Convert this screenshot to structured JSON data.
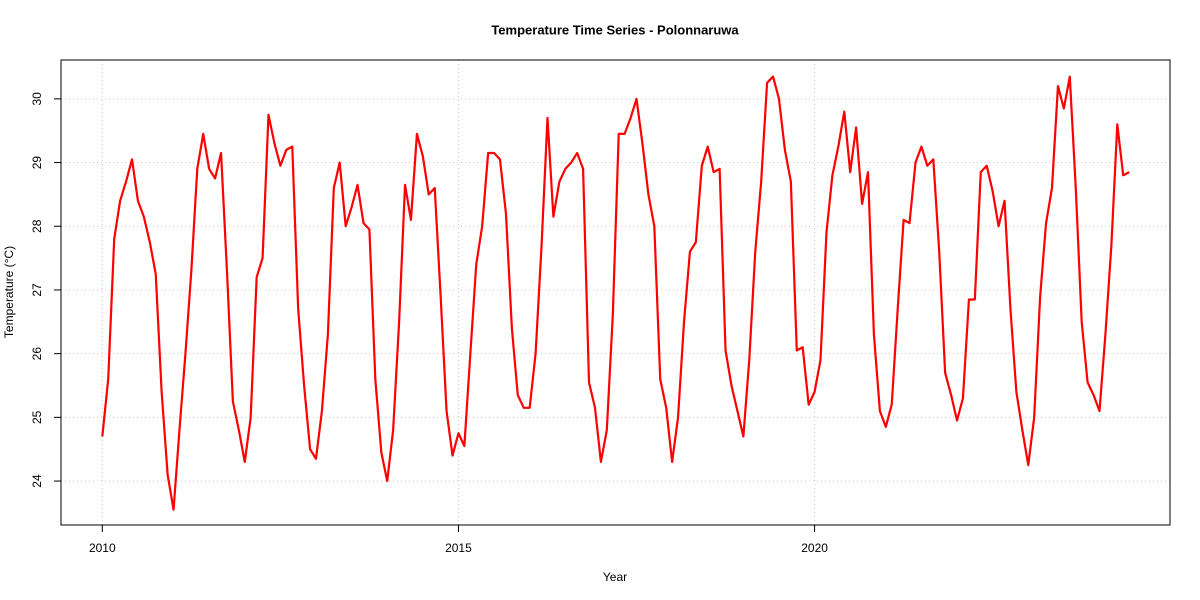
{
  "chart_data": {
    "type": "line",
    "title": "Temperature Time Series - Polonnaruwa",
    "x_label": "Year",
    "y_label": "Temperature (°C)",
    "color": "#ff0000",
    "grid": true,
    "xlim": [
      2009.42,
      2024.99
    ],
    "ylim": [
      23.31,
      30.61
    ],
    "xticks": [
      2010,
      2015,
      2020
    ],
    "yticks": [
      24,
      25,
      26,
      27,
      28,
      29,
      30
    ],
    "x": [
      2010,
      2010.083,
      2010.167,
      2010.25,
      2010.333,
      2010.417,
      2010.5,
      2010.583,
      2010.667,
      2010.75,
      2010.833,
      2010.917,
      2011,
      2011.083,
      2011.167,
      2011.25,
      2011.333,
      2011.417,
      2011.5,
      2011.583,
      2011.667,
      2011.75,
      2011.833,
      2011.917,
      2012,
      2012.083,
      2012.167,
      2012.25,
      2012.333,
      2012.417,
      2012.5,
      2012.583,
      2012.667,
      2012.75,
      2012.833,
      2012.917,
      2013,
      2013.083,
      2013.167,
      2013.25,
      2013.333,
      2013.417,
      2013.5,
      2013.583,
      2013.667,
      2013.75,
      2013.833,
      2013.917,
      2014,
      2014.083,
      2014.167,
      2014.25,
      2014.333,
      2014.417,
      2014.5,
      2014.583,
      2014.667,
      2014.75,
      2014.833,
      2014.917,
      2015,
      2015.083,
      2015.167,
      2015.25,
      2015.333,
      2015.417,
      2015.5,
      2015.583,
      2015.667,
      2015.75,
      2015.833,
      2015.917,
      2016,
      2016.083,
      2016.167,
      2016.25,
      2016.333,
      2016.417,
      2016.5,
      2016.583,
      2016.667,
      2016.75,
      2016.833,
      2016.917,
      2017,
      2017.083,
      2017.167,
      2017.25,
      2017.333,
      2017.417,
      2017.5,
      2017.583,
      2017.667,
      2017.75,
      2017.833,
      2017.917,
      2018,
      2018.083,
      2018.167,
      2018.25,
      2018.333,
      2018.417,
      2018.5,
      2018.583,
      2018.667,
      2018.75,
      2018.833,
      2018.917,
      2019,
      2019.083,
      2019.167,
      2019.25,
      2019.333,
      2019.417,
      2019.5,
      2019.583,
      2019.667,
      2019.75,
      2019.833,
      2019.917,
      2020,
      2020.083,
      2020.167,
      2020.25,
      2020.333,
      2020.417,
      2020.5,
      2020.583,
      2020.667,
      2020.75,
      2020.833,
      2020.917,
      2021,
      2021.083,
      2021.167,
      2021.25,
      2021.333,
      2021.417,
      2021.5,
      2021.583,
      2021.667,
      2021.75,
      2021.833,
      2021.917,
      2022,
      2022.083,
      2022.167,
      2022.25,
      2022.333,
      2022.417,
      2022.5,
      2022.583,
      2022.667,
      2022.75,
      2022.833,
      2022.917,
      2023,
      2023.083,
      2023.167,
      2023.25,
      2023.333,
      2023.417,
      2023.5,
      2023.583,
      2023.667,
      2023.75,
      2023.833,
      2023.917,
      2024,
      2024.083,
      2024.167,
      2024.25,
      2024.333,
      2024.417
    ],
    "values": [
      24.7,
      25.6,
      27.8,
      28.4,
      28.7,
      29.05,
      28.4,
      28.15,
      27.75,
      27.25,
      25.4,
      24.1,
      23.55,
      24.8,
      26.0,
      27.3,
      28.9,
      29.45,
      28.9,
      28.75,
      29.15,
      27.3,
      25.25,
      24.8,
      24.3,
      25.0,
      27.2,
      27.5,
      29.75,
      29.3,
      28.95,
      29.2,
      29.25,
      26.7,
      25.5,
      24.5,
      24.35,
      25.1,
      26.3,
      28.6,
      29.0,
      28.0,
      28.3,
      28.65,
      28.05,
      27.95,
      25.6,
      24.45,
      24.0,
      24.8,
      26.5,
      28.65,
      28.1,
      29.45,
      29.1,
      28.5,
      28.6,
      26.9,
      25.1,
      24.4,
      24.75,
      24.55,
      26.0,
      27.4,
      28.0,
      29.15,
      29.15,
      29.05,
      28.2,
      26.4,
      25.35,
      25.15,
      25.15,
      26.0,
      27.7,
      29.7,
      28.15,
      28.7,
      28.9,
      29.0,
      29.15,
      28.9,
      25.55,
      25.15,
      24.3,
      24.8,
      26.6,
      29.45,
      29.45,
      29.7,
      30.0,
      29.3,
      28.5,
      28.0,
      25.6,
      25.15,
      24.3,
      25.0,
      26.5,
      27.6,
      27.75,
      28.95,
      29.25,
      28.85,
      28.9,
      26.05,
      25.5,
      25.1,
      24.7,
      25.9,
      27.6,
      28.7,
      30.25,
      30.35,
      30.0,
      29.2,
      28.7,
      26.05,
      26.1,
      25.2,
      25.4,
      25.9,
      27.9,
      28.8,
      29.25,
      29.8,
      28.85,
      29.55,
      28.35,
      28.85,
      26.3,
      25.1,
      24.85,
      25.2,
      26.7,
      28.1,
      28.05,
      29.0,
      29.25,
      28.95,
      29.05,
      27.6,
      25.7,
      25.35,
      24.95,
      25.3,
      26.85,
      26.85,
      28.85,
      28.95,
      28.55,
      28.0,
      28.4,
      26.7,
      25.4,
      24.8,
      24.25,
      25.0,
      26.9,
      28.05,
      28.6,
      30.2,
      29.85,
      30.35,
      28.6,
      26.5,
      25.55,
      25.35,
      25.1,
      26.3,
      27.7,
      29.6,
      28.8,
      28.85
    ]
  }
}
